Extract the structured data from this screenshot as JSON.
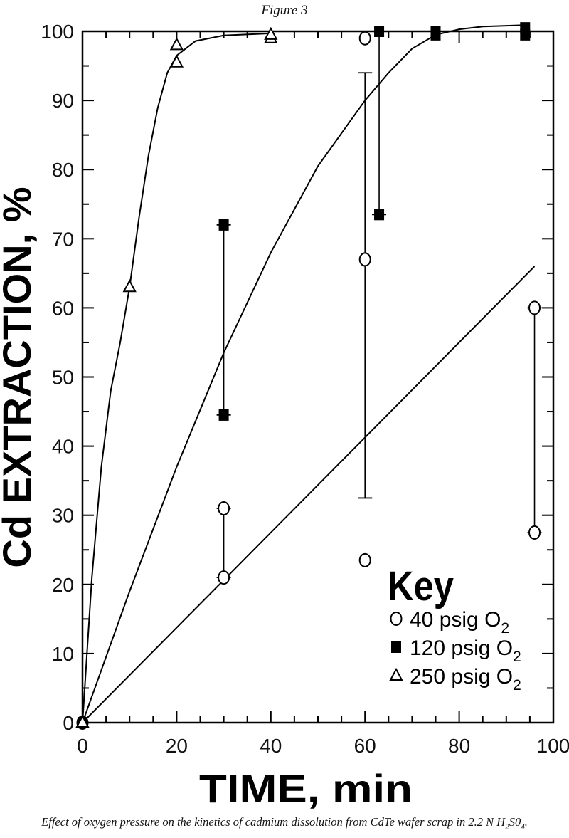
{
  "figure_label": "Figure 3",
  "caption_main": "Effect of oxygen pressure on the kinetics of cadmium dissolution from CdTe wafer scrap in 2.2 N H",
  "caption_sub1": "2",
  "caption_mid": "S0",
  "caption_sub2": "4",
  "caption_end": ".",
  "chart_data": {
    "type": "scatter",
    "xlabel": "TIME, min",
    "ylabel": "Cd EXTRACTION, %",
    "xlim": [
      0,
      100
    ],
    "ylim": [
      0,
      100
    ],
    "xticks": [
      0,
      20,
      40,
      60,
      80,
      100
    ],
    "yticks": [
      0,
      10,
      20,
      30,
      40,
      50,
      60,
      70,
      80,
      90,
      100
    ],
    "grid": false,
    "legend": {
      "title": "Key",
      "position": "bottom-right",
      "entries": [
        {
          "marker": "circle-open",
          "label": "40 psig O",
          "sub": "2"
        },
        {
          "marker": "square-filled",
          "label": "120 psig O",
          "sub": "2"
        },
        {
          "marker": "triangle-open",
          "label": "250 psig O",
          "sub": "2"
        }
      ]
    },
    "series": [
      {
        "key": "40 psig O2",
        "marker": "circle-open",
        "points": [
          {
            "x": 0,
            "y": 0
          },
          {
            "x": 30,
            "y": 21
          },
          {
            "x": 30,
            "y": 31
          },
          {
            "x": 60,
            "y": 23.5
          },
          {
            "x": 60,
            "y": 67
          },
          {
            "x": 60,
            "y": 99
          },
          {
            "x": 96,
            "y": 27.5
          },
          {
            "x": 96,
            "y": 60
          }
        ],
        "error_bars": [
          {
            "x": 30,
            "low": 21,
            "high": 31
          },
          {
            "x": 60,
            "low": 32.5,
            "high": 94
          },
          {
            "x": 96,
            "low": 27.5,
            "high": 60
          }
        ],
        "fit": [
          [
            0,
            0
          ],
          [
            96,
            66
          ]
        ]
      },
      {
        "key": "120 psig O2",
        "marker": "square-filled",
        "points": [
          {
            "x": 0,
            "y": 0
          },
          {
            "x": 30,
            "y": 44.5
          },
          {
            "x": 30,
            "y": 72
          },
          {
            "x": 63,
            "y": 73.5
          },
          {
            "x": 63,
            "y": 100
          },
          {
            "x": 75,
            "y": 99.5
          },
          {
            "x": 75,
            "y": 100
          },
          {
            "x": 94,
            "y": 99.5
          },
          {
            "x": 94,
            "y": 100.5
          }
        ],
        "error_bars": [
          {
            "x": 30,
            "low": 44.5,
            "high": 72
          },
          {
            "x": 63,
            "low": 73.5,
            "high": 100
          }
        ],
        "fit": [
          [
            0,
            0
          ],
          [
            10,
            19
          ],
          [
            20,
            37
          ],
          [
            30,
            53.5
          ],
          [
            40,
            68
          ],
          [
            50,
            80.5
          ],
          [
            60,
            90
          ],
          [
            65,
            94
          ],
          [
            70,
            97.5
          ],
          [
            75,
            99.5
          ],
          [
            80,
            100.3
          ],
          [
            85,
            100.7
          ],
          [
            94,
            100.9
          ]
        ]
      },
      {
        "key": "250 psig O2",
        "marker": "triangle-open",
        "points": [
          {
            "x": 0,
            "y": 0
          },
          {
            "x": 10,
            "y": 63
          },
          {
            "x": 20,
            "y": 95.5
          },
          {
            "x": 20,
            "y": 98
          },
          {
            "x": 40,
            "y": 99
          },
          {
            "x": 40,
            "y": 99.5
          }
        ],
        "error_bars": [],
        "fit": [
          [
            0,
            0
          ],
          [
            2,
            21
          ],
          [
            4,
            37
          ],
          [
            6,
            48
          ],
          [
            8,
            55
          ],
          [
            10,
            63
          ],
          [
            12,
            73
          ],
          [
            14,
            82
          ],
          [
            16,
            89
          ],
          [
            18,
            94
          ],
          [
            20,
            96.5
          ],
          [
            24,
            98.6
          ],
          [
            30,
            99.4
          ],
          [
            40,
            99.7
          ]
        ]
      }
    ]
  }
}
